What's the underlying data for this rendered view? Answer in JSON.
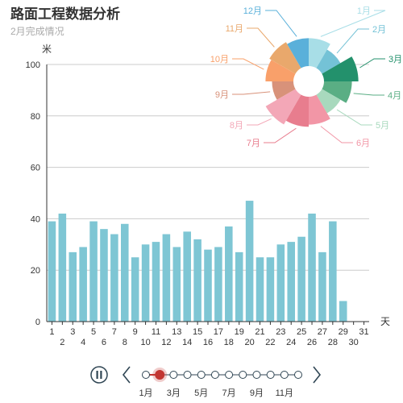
{
  "title": "路面工程数据分析",
  "subtitle": "2月完成情况",
  "chart_data": [
    {
      "type": "bar",
      "ylabel": "米",
      "xlabel": "天",
      "ylim": [
        0,
        100
      ],
      "yticks": [
        0,
        20,
        40,
        60,
        80,
        100
      ],
      "grid": true,
      "categories": [
        "1",
        "2",
        "3",
        "4",
        "5",
        "6",
        "7",
        "8",
        "9",
        "10",
        "11",
        "12",
        "13",
        "14",
        "15",
        "16",
        "17",
        "18",
        "19",
        "20",
        "21",
        "22",
        "23",
        "24",
        "25",
        "26",
        "27",
        "28",
        "29",
        "30",
        "31"
      ],
      "values": [
        39,
        42,
        27,
        29,
        39,
        36,
        34,
        38,
        25,
        30,
        31,
        34,
        29,
        35,
        32,
        28,
        29,
        37,
        27,
        47,
        25,
        25,
        30,
        31,
        33,
        42,
        27,
        39,
        8,
        null,
        null
      ],
      "color": "#7ec6d4"
    },
    {
      "type": "pie",
      "variant": "rose",
      "categories": [
        "1月",
        "2月",
        "3月",
        "4月",
        "5月",
        "6月",
        "7月",
        "8月",
        "9月",
        "10月",
        "11月",
        "12月"
      ],
      "values": [
        40,
        34,
        46,
        40,
        34,
        40,
        42,
        46,
        34,
        40,
        42,
        40
      ],
      "colors": [
        "#a8dee7",
        "#74c2d6",
        "#23916c",
        "#5aae84",
        "#a8d9bd",
        "#f296a6",
        "#e87d8e",
        "#f3a7b7",
        "#d8927a",
        "#f9a06a",
        "#e9a86c",
        "#5ab0da"
      ]
    }
  ],
  "timeline": {
    "months": [
      "1月",
      "3月",
      "5月",
      "7月",
      "9月",
      "11月"
    ],
    "count": 12,
    "selected_index": 1,
    "prev_icon": "chevron-left-icon",
    "next_icon": "chevron-right-icon",
    "play_icon": "pause-icon"
  }
}
